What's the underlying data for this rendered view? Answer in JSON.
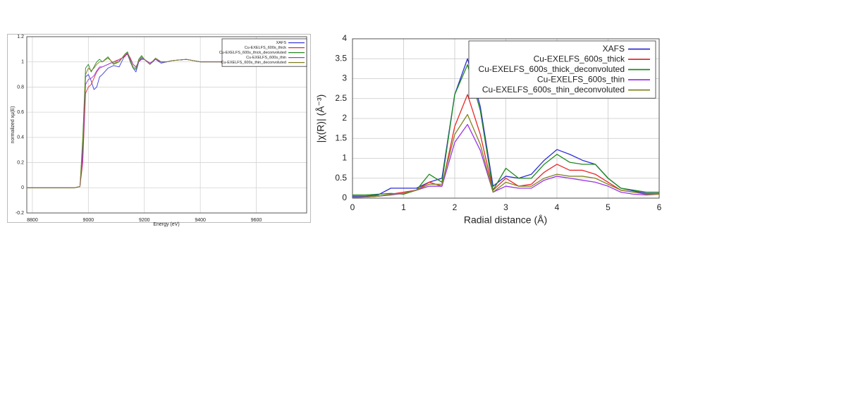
{
  "chart_data": [
    {
      "type": "line",
      "xlabel": "Energy    (eV)",
      "ylabel": "normalized xµ(E)",
      "x": [
        8780,
        8850,
        8900,
        8950,
        8970,
        8980,
        8990,
        9000,
        9010,
        9020,
        9030,
        9040,
        9050,
        9070,
        9090,
        9110,
        9130,
        9140,
        9150,
        9160,
        9170,
        9180,
        9190,
        9200,
        9220,
        9240,
        9260,
        9280,
        9300,
        9350,
        9400,
        9450,
        9500,
        9600,
        9700,
        9780
      ],
      "series": [
        {
          "name": "XAFS",
          "color": "#3a3ae0",
          "values": [
            0,
            0,
            0,
            0,
            0.01,
            0.3,
            0.88,
            0.9,
            0.85,
            0.78,
            0.8,
            0.88,
            0.9,
            0.95,
            0.97,
            0.96,
            1.05,
            1.06,
            1.0,
            0.95,
            0.92,
            1.0,
            1.03,
            1.02,
            0.98,
            1.02,
            0.99,
            1.0,
            1.01,
            1.02,
            1.0,
            1.0,
            1.0,
            1.0,
            1.0,
            1.0
          ]
        },
        {
          "name": "Cu-EXELFS_600s_thick",
          "color": "#e03030",
          "values": [
            0,
            0,
            0,
            0,
            0.01,
            0.2,
            0.75,
            0.8,
            0.82,
            0.87,
            0.92,
            0.95,
            0.96,
            0.98,
            1.0,
            1.02,
            1.04,
            1.07,
            1.03,
            0.98,
            0.96,
            1.0,
            1.02,
            1.02,
            0.99,
            1.02,
            1.0,
            1.0,
            1.01,
            1.02,
            1.0,
            1.0,
            1.0,
            1.0,
            1.0,
            1.0
          ]
        },
        {
          "name": "Cu-EXELFS_600s_thick_deconvoluted",
          "color": "#238a23",
          "values": [
            0,
            0,
            0,
            0,
            0.01,
            0.4,
            0.95,
            0.98,
            0.92,
            0.96,
            1.0,
            1.02,
            1.0,
            1.04,
            0.98,
            1.0,
            1.06,
            1.08,
            1.0,
            0.95,
            0.94,
            1.02,
            1.05,
            1.02,
            0.98,
            1.03,
            1.0,
            1.0,
            1.01,
            1.02,
            1.0,
            1.0,
            1.0,
            1.0,
            1.0,
            1.0
          ]
        },
        {
          "name": "Cu-EXELFS_600s_thin",
          "color": "#9a3ae6",
          "values": [
            0,
            0,
            0,
            0,
            0.01,
            0.25,
            0.82,
            0.86,
            0.87,
            0.89,
            0.93,
            0.96,
            0.96,
            0.98,
            1.0,
            1.01,
            1.05,
            1.07,
            1.02,
            0.98,
            0.96,
            1.0,
            1.02,
            1.02,
            0.99,
            1.02,
            1.0,
            1.0,
            1.01,
            1.02,
            1.0,
            1.0,
            1.0,
            1.0,
            1.0,
            1.0
          ]
        },
        {
          "name": "Cu-EXELFS_600s_thin_deconvoluted",
          "color": "#7f7f1e",
          "values": [
            0,
            0,
            0,
            0,
            0.01,
            0.35,
            0.9,
            0.95,
            0.93,
            0.95,
            0.98,
            1.0,
            1.0,
            1.03,
            0.99,
            1.0,
            1.06,
            1.07,
            1.01,
            0.96,
            0.95,
            1.01,
            1.04,
            1.02,
            0.98,
            1.03,
            1.0,
            1.0,
            1.01,
            1.02,
            1.0,
            1.0,
            1.0,
            1.0,
            1.0,
            1.0
          ]
        }
      ],
      "xlim": [
        8780,
        9780
      ],
      "xticks": [
        8800,
        9000,
        9200,
        9400,
        9600
      ],
      "ylim": [
        -0.2,
        1.2
      ],
      "yticks": [
        -0.2,
        0,
        0.2,
        0.4,
        0.6,
        0.8,
        1,
        1.2
      ],
      "grid": true,
      "legend": "upper-right"
    },
    {
      "type": "line",
      "xlabel": "Radial distance    (Å)",
      "ylabel": "|χ(R)|   (Å⁻³)",
      "x": [
        0,
        0.25,
        0.5,
        0.75,
        1,
        1.25,
        1.5,
        1.75,
        2,
        2.25,
        2.5,
        2.75,
        3,
        3.25,
        3.5,
        3.75,
        4,
        4.25,
        4.5,
        4.75,
        5,
        5.25,
        5.5,
        5.75,
        6
      ],
      "series": [
        {
          "name": "XAFS",
          "color": "#2f2fd8",
          "values": [
            0.05,
            0.05,
            0.08,
            0.25,
            0.25,
            0.25,
            0.4,
            0.5,
            2.6,
            3.5,
            2.3,
            0.3,
            0.55,
            0.5,
            0.6,
            0.95,
            1.22,
            1.1,
            0.95,
            0.85,
            0.5,
            0.25,
            0.18,
            0.12,
            0.12
          ]
        },
        {
          "name": "Cu-EXELFS_600s_thick",
          "color": "#e82828",
          "values": [
            0.02,
            0.03,
            0.05,
            0.1,
            0.15,
            0.2,
            0.4,
            0.3,
            1.8,
            2.6,
            1.6,
            0.2,
            0.5,
            0.3,
            0.35,
            0.65,
            0.85,
            0.7,
            0.7,
            0.6,
            0.4,
            0.2,
            0.15,
            0.1,
            0.12
          ]
        },
        {
          "name": "Cu-EXELFS_600s_thick_deconvoluted",
          "color": "#1e8a1e",
          "values": [
            0.08,
            0.08,
            0.1,
            0.12,
            0.1,
            0.2,
            0.6,
            0.4,
            2.6,
            3.35,
            2.2,
            0.2,
            0.75,
            0.5,
            0.5,
            0.85,
            1.1,
            0.9,
            0.85,
            0.85,
            0.5,
            0.25,
            0.2,
            0.15,
            0.15
          ]
        },
        {
          "name": "Cu-EXELFS_600s_thin",
          "color": "#9b34e8",
          "values": [
            0.02,
            0.03,
            0.05,
            0.08,
            0.12,
            0.2,
            0.3,
            0.3,
            1.4,
            1.85,
            1.2,
            0.15,
            0.3,
            0.25,
            0.25,
            0.45,
            0.55,
            0.5,
            0.45,
            0.4,
            0.3,
            0.15,
            0.1,
            0.08,
            0.1
          ]
        },
        {
          "name": "Cu-EXELFS_600s_thin_deconvoluted",
          "color": "#838321",
          "values": [
            0.02,
            0.03,
            0.05,
            0.1,
            0.12,
            0.2,
            0.35,
            0.35,
            1.6,
            2.1,
            1.35,
            0.15,
            0.4,
            0.3,
            0.3,
            0.5,
            0.6,
            0.55,
            0.55,
            0.5,
            0.35,
            0.2,
            0.15,
            0.1,
            0.1
          ]
        }
      ],
      "xlim": [
        0,
        6
      ],
      "xticks": [
        0,
        1,
        2,
        3,
        4,
        5,
        6
      ],
      "ylim": [
        0,
        4
      ],
      "yticks": [
        0,
        0.5,
        1,
        1.5,
        2,
        2.5,
        3,
        3.5,
        4
      ],
      "grid": true,
      "legend": "upper-right"
    }
  ]
}
